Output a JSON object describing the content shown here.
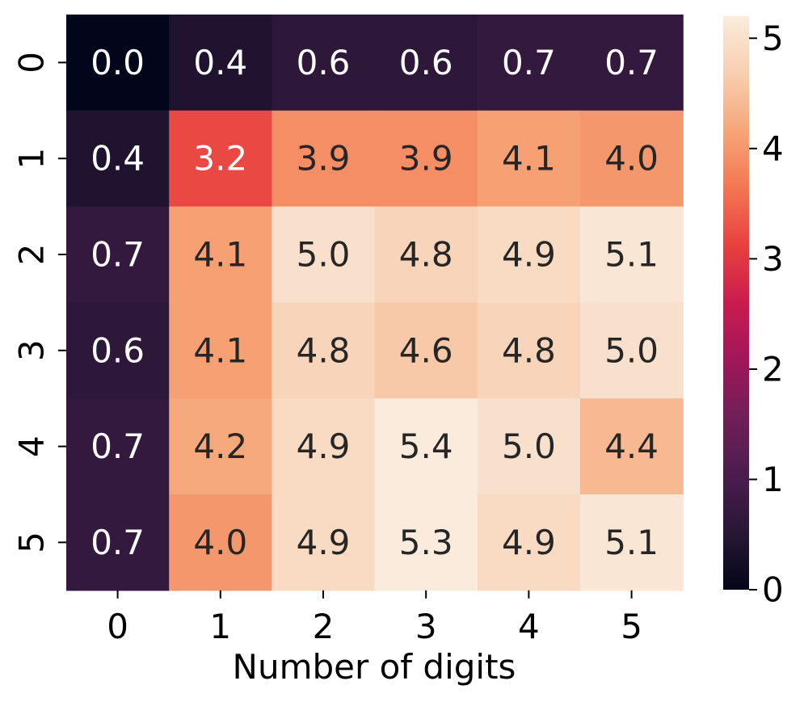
{
  "chart_data": {
    "type": "heatmap",
    "xlabel": "Number of digits",
    "ylabel": "",
    "x_categories": [
      "0",
      "1",
      "2",
      "3",
      "4",
      "5"
    ],
    "y_categories": [
      "0",
      "1",
      "2",
      "3",
      "4",
      "5"
    ],
    "values": [
      [
        0.0,
        0.4,
        0.6,
        0.6,
        0.7,
        0.7
      ],
      [
        0.4,
        3.2,
        3.9,
        3.9,
        4.1,
        4.0
      ],
      [
        0.7,
        4.1,
        5.0,
        4.8,
        4.9,
        5.1
      ],
      [
        0.6,
        4.1,
        4.8,
        4.6,
        4.8,
        5.0
      ],
      [
        0.7,
        4.2,
        4.9,
        5.4,
        5.0,
        4.4
      ],
      [
        0.7,
        4.0,
        4.9,
        5.3,
        4.9,
        5.1
      ]
    ],
    "cell_labels": [
      [
        "0.0",
        "0.4",
        "0.6",
        "0.6",
        "0.7",
        "0.7"
      ],
      [
        "0.4",
        "3.2",
        "3.9",
        "3.9",
        "4.1",
        "4.0"
      ],
      [
        "0.7",
        "4.1",
        "5.0",
        "4.8",
        "4.9",
        "5.1"
      ],
      [
        "0.6",
        "4.1",
        "4.8",
        "4.6",
        "4.8",
        "5.0"
      ],
      [
        "0.7",
        "4.2",
        "4.9",
        "5.4",
        "5.0",
        "4.4"
      ],
      [
        "0.7",
        "4.0",
        "4.9",
        "5.3",
        "4.9",
        "5.1"
      ]
    ],
    "colorbar": {
      "range": [
        0,
        5.2
      ],
      "ticks": [
        "0",
        "1",
        "2",
        "3",
        "4",
        "5"
      ],
      "colormap": "rocket"
    },
    "grid": false,
    "legend": "colorbar-right"
  },
  "colors": {
    "text_on_dark": "#ffffff",
    "text_on_light": "#262626",
    "axis": "#000000"
  }
}
